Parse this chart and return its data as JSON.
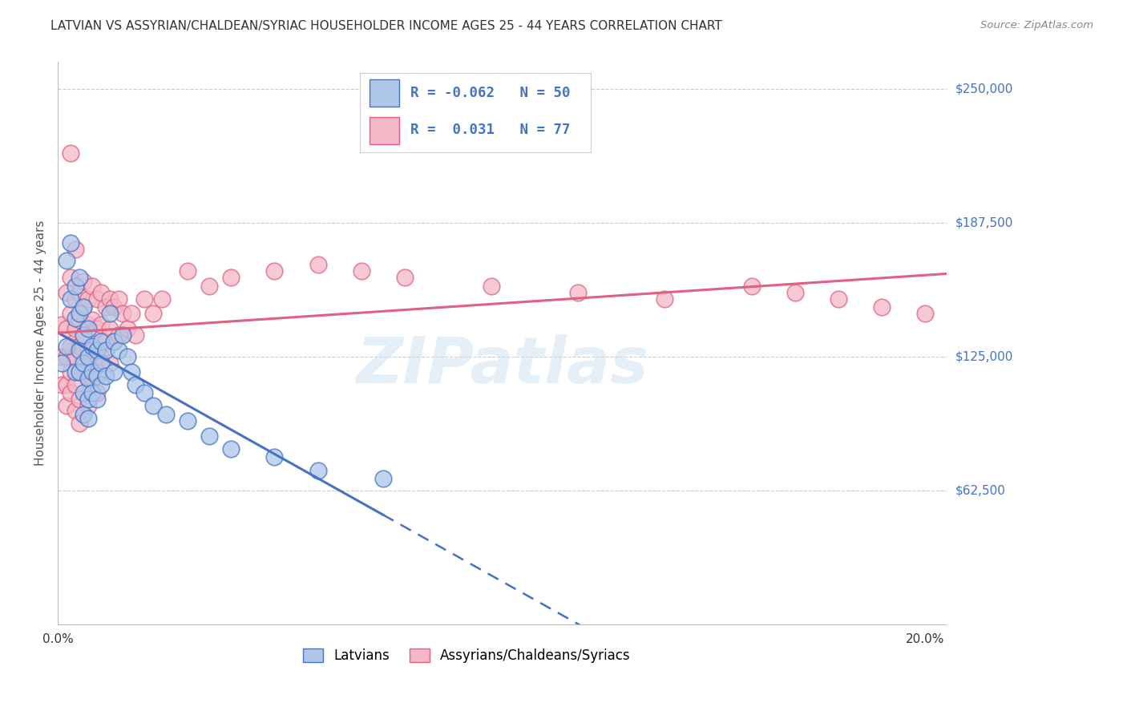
{
  "title": "LATVIAN VS ASSYRIAN/CHALDEAN/SYRIAC HOUSEHOLDER INCOME AGES 25 - 44 YEARS CORRELATION CHART",
  "source": "Source: ZipAtlas.com",
  "ylabel": "Householder Income Ages 25 - 44 years",
  "ytick_labels": [
    "$62,500",
    "$125,000",
    "$187,500",
    "$250,000"
  ],
  "ytick_values": [
    62500,
    125000,
    187500,
    250000
  ],
  "ymin": 0,
  "ymax": 262500,
  "xmin": 0.0,
  "xmax": 0.205,
  "legend_latvian_R": "-0.062",
  "legend_latvian_N": "50",
  "legend_assyrian_R": "0.031",
  "legend_assyrian_N": "77",
  "latvian_color": "#aec6e8",
  "latvian_line_color": "#4472c4",
  "assyrian_color": "#f5b8c8",
  "assyrian_line_color": "#e06080",
  "watermark": "ZIPatlas",
  "latvian_points": [
    [
      0.001,
      122000
    ],
    [
      0.002,
      130000
    ],
    [
      0.002,
      170000
    ],
    [
      0.003,
      178000
    ],
    [
      0.003,
      152000
    ],
    [
      0.004,
      158000
    ],
    [
      0.004,
      143000
    ],
    [
      0.004,
      118000
    ],
    [
      0.005,
      162000
    ],
    [
      0.005,
      145000
    ],
    [
      0.005,
      128000
    ],
    [
      0.005,
      118000
    ],
    [
      0.006,
      148000
    ],
    [
      0.006,
      135000
    ],
    [
      0.006,
      122000
    ],
    [
      0.006,
      108000
    ],
    [
      0.006,
      98000
    ],
    [
      0.007,
      138000
    ],
    [
      0.007,
      125000
    ],
    [
      0.007,
      115000
    ],
    [
      0.007,
      105000
    ],
    [
      0.007,
      96000
    ],
    [
      0.008,
      130000
    ],
    [
      0.008,
      118000
    ],
    [
      0.008,
      108000
    ],
    [
      0.009,
      128000
    ],
    [
      0.009,
      116000
    ],
    [
      0.009,
      105000
    ],
    [
      0.01,
      132000
    ],
    [
      0.01,
      122000
    ],
    [
      0.01,
      112000
    ],
    [
      0.011,
      128000
    ],
    [
      0.011,
      116000
    ],
    [
      0.012,
      145000
    ],
    [
      0.013,
      132000
    ],
    [
      0.013,
      118000
    ],
    [
      0.014,
      128000
    ],
    [
      0.015,
      135000
    ],
    [
      0.016,
      125000
    ],
    [
      0.017,
      118000
    ],
    [
      0.018,
      112000
    ],
    [
      0.02,
      108000
    ],
    [
      0.022,
      102000
    ],
    [
      0.025,
      98000
    ],
    [
      0.03,
      95000
    ],
    [
      0.035,
      88000
    ],
    [
      0.04,
      82000
    ],
    [
      0.05,
      78000
    ],
    [
      0.06,
      72000
    ],
    [
      0.075,
      68000
    ]
  ],
  "assyrian_points": [
    [
      0.001,
      140000
    ],
    [
      0.001,
      125000
    ],
    [
      0.001,
      112000
    ],
    [
      0.002,
      155000
    ],
    [
      0.002,
      138000
    ],
    [
      0.002,
      125000
    ],
    [
      0.002,
      112000
    ],
    [
      0.002,
      102000
    ],
    [
      0.003,
      220000
    ],
    [
      0.003,
      162000
    ],
    [
      0.003,
      145000
    ],
    [
      0.003,
      130000
    ],
    [
      0.003,
      118000
    ],
    [
      0.003,
      108000
    ],
    [
      0.004,
      175000
    ],
    [
      0.004,
      152000
    ],
    [
      0.004,
      138000
    ],
    [
      0.004,
      125000
    ],
    [
      0.004,
      112000
    ],
    [
      0.004,
      100000
    ],
    [
      0.005,
      155000
    ],
    [
      0.005,
      142000
    ],
    [
      0.005,
      130000
    ],
    [
      0.005,
      118000
    ],
    [
      0.005,
      105000
    ],
    [
      0.005,
      94000
    ],
    [
      0.006,
      160000
    ],
    [
      0.006,
      148000
    ],
    [
      0.006,
      135000
    ],
    [
      0.006,
      120000
    ],
    [
      0.007,
      152000
    ],
    [
      0.007,
      140000
    ],
    [
      0.007,
      128000
    ],
    [
      0.007,
      115000
    ],
    [
      0.007,
      102000
    ],
    [
      0.008,
      158000
    ],
    [
      0.008,
      142000
    ],
    [
      0.008,
      128000
    ],
    [
      0.008,
      115000
    ],
    [
      0.009,
      152000
    ],
    [
      0.009,
      138000
    ],
    [
      0.009,
      122000
    ],
    [
      0.009,
      108000
    ],
    [
      0.01,
      155000
    ],
    [
      0.01,
      140000
    ],
    [
      0.01,
      125000
    ],
    [
      0.011,
      148000
    ],
    [
      0.011,
      132000
    ],
    [
      0.012,
      152000
    ],
    [
      0.012,
      138000
    ],
    [
      0.012,
      122000
    ],
    [
      0.013,
      148000
    ],
    [
      0.013,
      132000
    ],
    [
      0.014,
      152000
    ],
    [
      0.014,
      135000
    ],
    [
      0.015,
      145000
    ],
    [
      0.016,
      138000
    ],
    [
      0.017,
      145000
    ],
    [
      0.018,
      135000
    ],
    [
      0.02,
      152000
    ],
    [
      0.022,
      145000
    ],
    [
      0.024,
      152000
    ],
    [
      0.03,
      165000
    ],
    [
      0.035,
      158000
    ],
    [
      0.04,
      162000
    ],
    [
      0.05,
      165000
    ],
    [
      0.06,
      168000
    ],
    [
      0.07,
      165000
    ],
    [
      0.08,
      162000
    ],
    [
      0.1,
      158000
    ],
    [
      0.12,
      155000
    ],
    [
      0.14,
      152000
    ],
    [
      0.16,
      158000
    ],
    [
      0.17,
      155000
    ],
    [
      0.18,
      152000
    ],
    [
      0.19,
      148000
    ],
    [
      0.2,
      145000
    ]
  ]
}
